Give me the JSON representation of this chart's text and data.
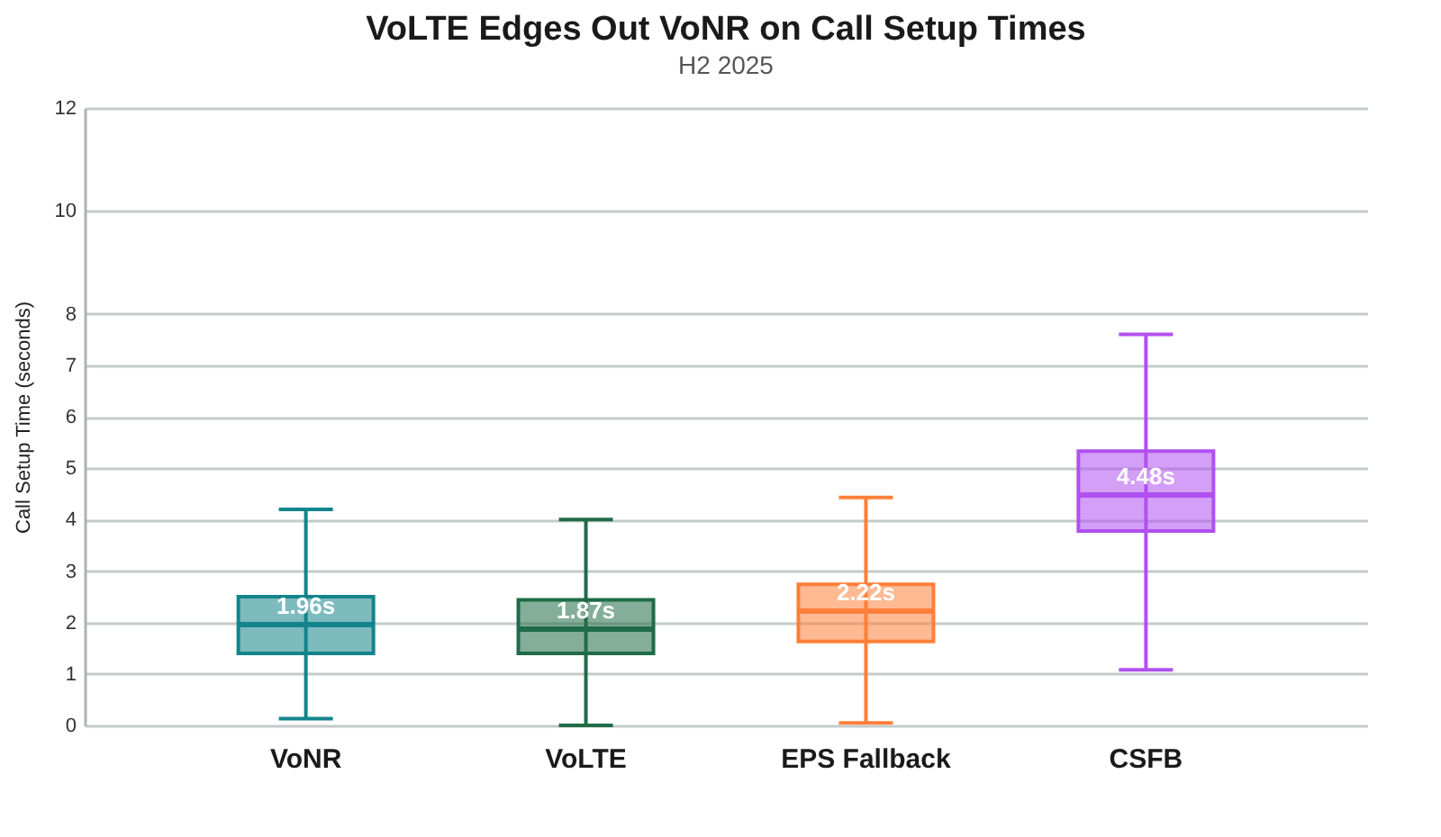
{
  "chart_data": {
    "type": "box",
    "title": "VoLTE Edges Out VoNR on Call Setup Times",
    "subtitle": "H2 2025",
    "ylabel": "Call Setup Time (seconds)",
    "categories": [
      "VoNR",
      "VoLTE",
      "EPS Fallback",
      "CSFB"
    ],
    "colors": [
      "#13848b",
      "#1f6b47",
      "#ff7f3a",
      "#b150f0"
    ],
    "boxes": [
      {
        "low": 0.13,
        "q1": 1.4,
        "median": 1.96,
        "q3": 2.5,
        "high": 4.2
      },
      {
        "low": 0,
        "q1": 1.4,
        "median": 1.87,
        "q3": 2.44,
        "high": 4
      },
      {
        "low": 0.05,
        "q1": 1.63,
        "median": 2.22,
        "q3": 2.74,
        "high": 4.43
      },
      {
        "low": 1.08,
        "q1": 3.78,
        "median": 4.48,
        "q3": 5.33,
        "high": 7.6
      }
    ],
    "ylim": [
      0,
      12
    ],
    "yticks": [
      0,
      1,
      2,
      3,
      4,
      5,
      6,
      7,
      8,
      10,
      12
    ],
    "grid": "y",
    "annotations": [
      {
        "text": "1.96s",
        "x": "VoNR",
        "y": 1.96
      },
      {
        "text": "1.87s",
        "x": "VoLTE",
        "y": 1.87
      },
      {
        "text": "2.22s",
        "x": "EPS Fallback",
        "y": 2.22
      },
      {
        "text": "4.48s",
        "x": "CSFB",
        "y": 4.48
      }
    ]
  }
}
